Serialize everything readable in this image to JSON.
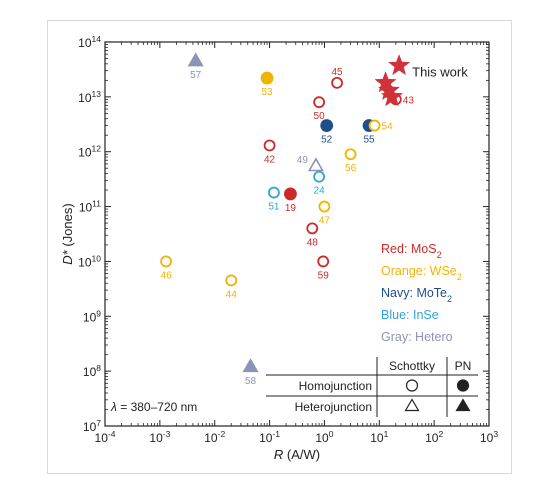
{
  "chart_data": {
    "type": "scatter",
    "title": "",
    "xlabel_var": "R",
    "xlabel_unit": " (A/W)",
    "ylabel_var": "D*",
    "ylabel_unit": " (Jones)",
    "x_scale": "log",
    "y_scale": "log",
    "xlim": [
      0.0001,
      1000
    ],
    "ylim": [
      10000000,
      100000000000000
    ],
    "grid": false,
    "x_ticks": [
      {
        "value": 0.0001,
        "base": "10",
        "exp": "-4"
      },
      {
        "value": 0.001,
        "base": "10",
        "exp": "-3"
      },
      {
        "value": 0.01,
        "base": "10",
        "exp": "-2"
      },
      {
        "value": 0.1,
        "base": "10",
        "exp": "-1"
      },
      {
        "value": 1,
        "base": "10",
        "exp": "0"
      },
      {
        "value": 10,
        "base": "10",
        "exp": "1"
      },
      {
        "value": 100,
        "base": "10",
        "exp": "2"
      },
      {
        "value": 1000,
        "base": "10",
        "exp": "3"
      }
    ],
    "y_ticks": [
      {
        "value": 10000000,
        "base": "10",
        "exp": "7"
      },
      {
        "value": 100000000,
        "base": "10",
        "exp": "8"
      },
      {
        "value": 1000000000,
        "base": "10",
        "exp": "9"
      },
      {
        "value": 10000000000,
        "base": "10",
        "exp": "10"
      },
      {
        "value": 100000000000,
        "base": "10",
        "exp": "11"
      },
      {
        "value": 1000000000000,
        "base": "10",
        "exp": "12"
      },
      {
        "value": 10000000000000,
        "base": "10",
        "exp": "13"
      },
      {
        "value": 100000000000000,
        "base": "10",
        "exp": "14"
      }
    ],
    "colors": {
      "red": "#cc2a2a",
      "orange": "#f0b400",
      "navy": "#1f4e8c",
      "blue": "#2fa6d8",
      "gray": "#8e93b5",
      "star": "#d0323a"
    },
    "points": [
      {
        "label": "57",
        "x": 0.0045,
        "y": 45000000000000,
        "color": "gray",
        "shape": "triangle",
        "fill": true,
        "label_pos": "below"
      },
      {
        "label": "53",
        "x": 0.09,
        "y": 22000000000000,
        "color": "orange",
        "shape": "circle",
        "fill": true,
        "label_pos": "below"
      },
      {
        "label": "45",
        "x": 1.7,
        "y": 18000000000000,
        "color": "red",
        "shape": "circle",
        "fill": false,
        "label_pos": "above"
      },
      {
        "label": "50",
        "x": 0.8,
        "y": 8000000000000,
        "color": "red",
        "shape": "circle",
        "fill": false,
        "label_pos": "below"
      },
      {
        "label": "43",
        "x": 20,
        "y": 9000000000000,
        "color": "red",
        "shape": "circle",
        "fill": false,
        "label_pos": "right"
      },
      {
        "label": "52",
        "x": 1.1,
        "y": 3000000000000,
        "color": "navy",
        "shape": "circle",
        "fill": true,
        "label_pos": "below"
      },
      {
        "label": "55",
        "x": 6.5,
        "y": 3000000000000,
        "color": "navy",
        "shape": "circle",
        "fill": true,
        "label_pos": "below"
      },
      {
        "label": "54",
        "x": 8.2,
        "y": 3000000000000,
        "color": "orange",
        "shape": "circle",
        "fill": false,
        "label_pos": "right"
      },
      {
        "label": "42",
        "x": 0.1,
        "y": 1300000000000,
        "color": "red",
        "shape": "circle",
        "fill": false,
        "label_pos": "below"
      },
      {
        "label": "56",
        "x": 3,
        "y": 900000000000,
        "color": "orange",
        "shape": "circle",
        "fill": false,
        "label_pos": "below"
      },
      {
        "label": "49",
        "x": 0.7,
        "y": 550000000000,
        "color": "gray",
        "shape": "triangle",
        "fill": false,
        "label_pos": "left"
      },
      {
        "label": "24",
        "x": 0.8,
        "y": 350000000000,
        "color": "blue",
        "shape": "circle",
        "fill": false,
        "label_pos": "below"
      },
      {
        "label": "51",
        "x": 0.12,
        "y": 180000000000,
        "color": "blue",
        "shape": "circle",
        "fill": false,
        "label_pos": "below"
      },
      {
        "label": "19",
        "x": 0.24,
        "y": 170000000000,
        "color": "red",
        "shape": "circle",
        "fill": true,
        "label_pos": "below"
      },
      {
        "label": "47",
        "x": 1,
        "y": 100000000000,
        "color": "orange",
        "shape": "circle",
        "fill": false,
        "label_pos": "below"
      },
      {
        "label": "48",
        "x": 0.6,
        "y": 40000000000,
        "color": "red",
        "shape": "circle",
        "fill": false,
        "label_pos": "below"
      },
      {
        "label": "59",
        "x": 0.95,
        "y": 10000000000,
        "color": "red",
        "shape": "circle",
        "fill": false,
        "label_pos": "below"
      },
      {
        "label": "46",
        "x": 0.0013,
        "y": 10000000000,
        "color": "orange",
        "shape": "circle",
        "fill": false,
        "label_pos": "below"
      },
      {
        "label": "44",
        "x": 0.02,
        "y": 4500000000,
        "color": "orange",
        "shape": "circle",
        "fill": false,
        "label_pos": "below"
      },
      {
        "label": "58",
        "x": 0.045,
        "y": 120000000,
        "color": "gray",
        "shape": "triangle",
        "fill": true,
        "label_pos": "below"
      }
    ],
    "stars": [
      {
        "x": 23,
        "y": 37000000000000
      },
      {
        "x": 13,
        "y": 18000000000000
      },
      {
        "x": 15,
        "y": 13000000000000
      },
      {
        "x": 17,
        "y": 10000000000000
      }
    ],
    "star_label": "This work",
    "legend": [
      {
        "name": "Red",
        "material": "MoS",
        "sub": "2",
        "color": "red"
      },
      {
        "name": "Orange",
        "material": "WSe",
        "sub": "2",
        "color": "orange"
      },
      {
        "name": "Navy",
        "material": "MoTe",
        "sub": "2",
        "color": "navy"
      },
      {
        "name": "Blue",
        "material": "InSe",
        "sub": "",
        "color": "blue"
      },
      {
        "name": "Gray",
        "material": "Hetero",
        "sub": "",
        "color": "gray"
      }
    ],
    "table": {
      "col_headers": [
        "Schottky",
        "PN"
      ],
      "rows": [
        "Homojunction",
        "Heterojunction"
      ]
    },
    "annotation": {
      "symbol": "λ",
      "text": " = 380–720 nm"
    }
  }
}
